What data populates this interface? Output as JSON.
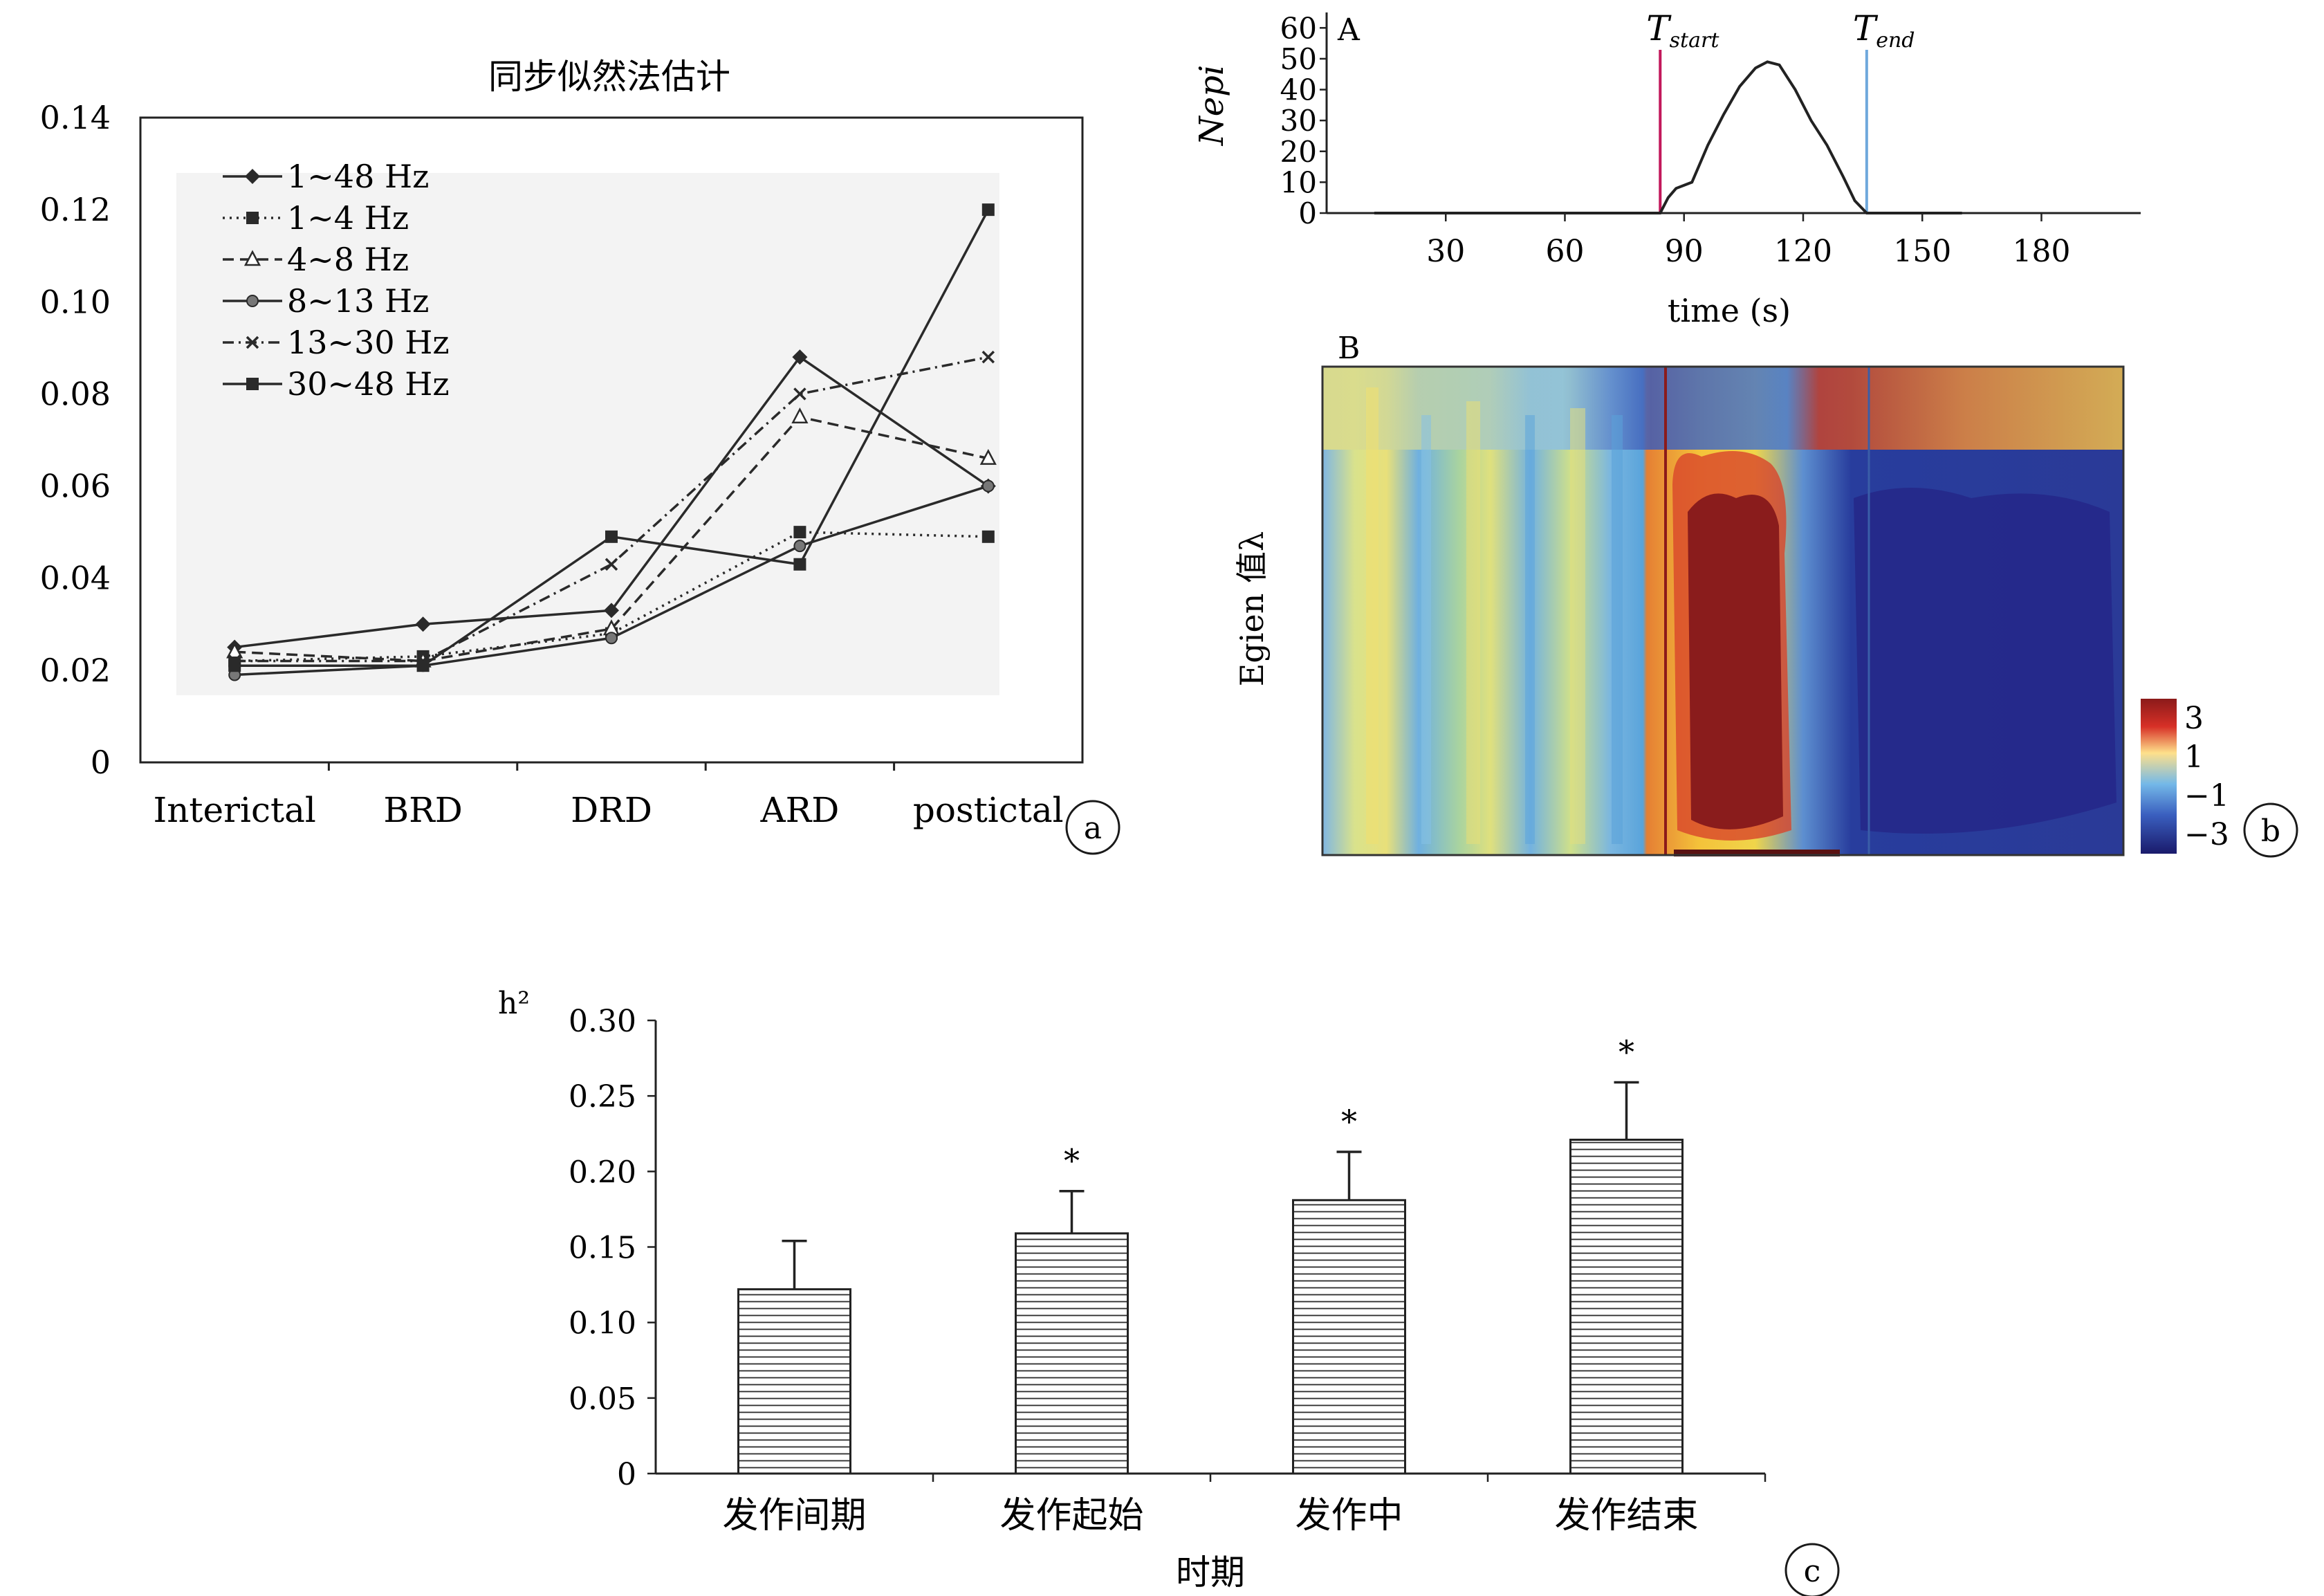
{
  "chart_data": [
    {
      "panel": "a",
      "type": "line",
      "title": "同步似然法估计",
      "categories": [
        "Interictal",
        "BRD",
        "DRD",
        "ARD",
        "postictal"
      ],
      "ylim": [
        0,
        0.14
      ],
      "yticks": [
        "0",
        "0.02",
        "0.04",
        "0.06",
        "0.08",
        "0.10",
        "0.12",
        "0.14"
      ],
      "legend_position": "top-left",
      "series": [
        {
          "name": "1~48 Hz",
          "values": [
            0.025,
            0.03,
            0.033,
            0.088,
            0.06
          ],
          "style": "solid",
          "marker": "diamond"
        },
        {
          "name": "1~4 Hz",
          "values": [
            0.022,
            0.023,
            0.028,
            0.05,
            0.049
          ],
          "style": "dotted",
          "marker": "square"
        },
        {
          "name": "4~8 Hz",
          "values": [
            0.024,
            0.022,
            0.029,
            0.075,
            0.066
          ],
          "style": "dashed",
          "marker": "triangle"
        },
        {
          "name": "8~13 Hz",
          "values": [
            0.019,
            0.021,
            0.027,
            0.047,
            0.06
          ],
          "style": "solid",
          "marker": "circle"
        },
        {
          "name": "13~30 Hz",
          "values": [
            0.022,
            0.022,
            0.043,
            0.08,
            0.088
          ],
          "style": "dashdot",
          "marker": "x"
        },
        {
          "name": "30~48 Hz",
          "values": [
            0.021,
            0.021,
            0.049,
            0.043,
            0.12
          ],
          "style": "solid",
          "marker": "square"
        }
      ],
      "circle_label": "a"
    },
    {
      "panel": "b-A",
      "type": "line",
      "panel_letter": "A",
      "ylabel": "Nepi",
      "xlabel": "time (s)",
      "xticks": [
        "30",
        "60",
        "90",
        "120",
        "150",
        "180"
      ],
      "yticks": [
        "0",
        "10",
        "20",
        "30",
        "40",
        "50",
        "60"
      ],
      "xlim": [
        0,
        205
      ],
      "ylim": [
        0,
        65
      ],
      "markers": [
        {
          "name": "T",
          "subscript": "start",
          "x": 84,
          "color": "#c2185b"
        },
        {
          "name": "T",
          "subscript": "end",
          "x": 136,
          "color": "#6fa8dc"
        }
      ],
      "x": [
        12,
        15,
        84,
        86,
        88,
        92,
        96,
        100,
        104,
        108,
        111,
        114,
        118,
        122,
        126,
        130,
        133,
        136,
        140,
        146,
        150,
        152,
        160
      ],
      "y": [
        0,
        0,
        0,
        5,
        8,
        10,
        22,
        32,
        41,
        47,
        49,
        48,
        40,
        30,
        22,
        12,
        4,
        0,
        0,
        0,
        0,
        0,
        0
      ]
    },
    {
      "panel": "b-B",
      "type": "heatmap",
      "panel_letter": "B",
      "ylabel": "Egien 值λ",
      "colorbar_ticks": [
        "3",
        "1",
        "−1",
        "−3"
      ],
      "colorbar_range": [
        -4,
        4
      ],
      "circle_label": "b"
    },
    {
      "panel": "c",
      "type": "bar",
      "ylabel": "h²",
      "xlabel": "时期",
      "categories": [
        "发作间期",
        "发作起始",
        "发作中",
        "发作结束"
      ],
      "values": [
        0.122,
        0.159,
        0.181,
        0.221
      ],
      "errors": [
        0.032,
        0.028,
        0.032,
        0.038
      ],
      "significance": [
        "",
        "*",
        "*",
        "*"
      ],
      "ylim": [
        0,
        0.3
      ],
      "yticks": [
        "0",
        "0.05",
        "0.10",
        "0.15",
        "0.20",
        "0.25",
        "0.30"
      ],
      "circle_label": "c"
    }
  ]
}
